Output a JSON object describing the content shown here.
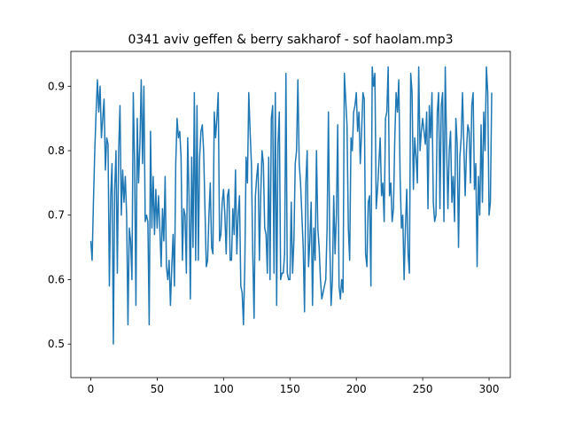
{
  "chart_data": {
    "type": "line",
    "title": "0341 aviv geffen & berry sakharof - sof haolam.mp3",
    "x": [
      0,
      1,
      2,
      3,
      4,
      5,
      6,
      7,
      8,
      9,
      10,
      11,
      12,
      13,
      14,
      15,
      16,
      17,
      18,
      19,
      20,
      21,
      22,
      23,
      24,
      25,
      26,
      27,
      28,
      29,
      30,
      31,
      32,
      33,
      34,
      35,
      36,
      37,
      38,
      39,
      40,
      41,
      42,
      43,
      44,
      45,
      46,
      47,
      48,
      49,
      50,
      51,
      52,
      53,
      54,
      55,
      56,
      57,
      58,
      59,
      60,
      61,
      62,
      63,
      64,
      65,
      66,
      67,
      68,
      69,
      70,
      71,
      72,
      73,
      74,
      75,
      76,
      77,
      78,
      79,
      80,
      81,
      82,
      83,
      84,
      85,
      86,
      87,
      88,
      89,
      90,
      91,
      92,
      93,
      94,
      95,
      96,
      97,
      98,
      99,
      100,
      101,
      102,
      103,
      104,
      105,
      106,
      107,
      108,
      109,
      110,
      111,
      112,
      113,
      114,
      115,
      116,
      117,
      118,
      119,
      120,
      121,
      122,
      123,
      124,
      125,
      126,
      127,
      128,
      129,
      130,
      131,
      132,
      133,
      134,
      135,
      136,
      137,
      138,
      139,
      140,
      141,
      142,
      143,
      144,
      145,
      146,
      147,
      148,
      149,
      150,
      151,
      152,
      153,
      154,
      155,
      156,
      157,
      158,
      159,
      160,
      161,
      162,
      163,
      164,
      165,
      166,
      167,
      168,
      169,
      170,
      171,
      172,
      173,
      174,
      175,
      176,
      177,
      178,
      179,
      180,
      181,
      182,
      183,
      184,
      185,
      186,
      187,
      188,
      189,
      190,
      191,
      192,
      193,
      194,
      195,
      196,
      197,
      198,
      199,
      200,
      201,
      202,
      203,
      204,
      205,
      206,
      207,
      208,
      209,
      210,
      211,
      212,
      213,
      214,
      215,
      216,
      217,
      218,
      219,
      220,
      221,
      222,
      223,
      224,
      225,
      226,
      227,
      228,
      229,
      230,
      231,
      232,
      233,
      234,
      235,
      236,
      237,
      238,
      239,
      240,
      241,
      242,
      243,
      244,
      245,
      246,
      247,
      248,
      249,
      250,
      251,
      252,
      253,
      254,
      255,
      256,
      257,
      258,
      259,
      260,
      261,
      262,
      263,
      264,
      265,
      266,
      267,
      268,
      269,
      270,
      271,
      272,
      273,
      274,
      275,
      276,
      277,
      278,
      279,
      280,
      281,
      282,
      283,
      284,
      285,
      286,
      287,
      288,
      289,
      290,
      291,
      292,
      293,
      294,
      295,
      296,
      297,
      298,
      299,
      300,
      301,
      302
    ],
    "series": [
      {
        "color": "#1f77b4",
        "values": [
          0.66,
          0.63,
          0.72,
          0.8,
          0.86,
          0.91,
          0.86,
          0.9,
          0.82,
          0.85,
          0.88,
          0.77,
          0.82,
          0.81,
          0.59,
          0.73,
          0.78,
          0.5,
          0.74,
          0.8,
          0.61,
          0.8,
          0.87,
          0.7,
          0.77,
          0.72,
          0.76,
          0.7,
          0.53,
          0.68,
          0.66,
          0.6,
          0.89,
          0.78,
          0.56,
          0.85,
          0.75,
          0.81,
          0.91,
          0.78,
          0.9,
          0.69,
          0.7,
          0.69,
          0.53,
          0.83,
          0.68,
          0.76,
          0.67,
          0.74,
          0.68,
          0.73,
          0.68,
          0.62,
          0.71,
          0.66,
          0.76,
          0.62,
          0.6,
          0.63,
          0.56,
          0.62,
          0.67,
          0.59,
          0.78,
          0.85,
          0.82,
          0.83,
          0.79,
          0.63,
          0.71,
          0.7,
          0.61,
          0.82,
          0.73,
          0.57,
          0.79,
          0.65,
          0.89,
          0.63,
          0.87,
          0.63,
          0.79,
          0.83,
          0.84,
          0.8,
          0.71,
          0.62,
          0.63,
          0.7,
          0.75,
          0.65,
          0.64,
          0.86,
          0.82,
          0.85,
          0.89,
          0.66,
          0.67,
          0.72,
          0.74,
          0.7,
          0.64,
          0.73,
          0.74,
          0.63,
          0.63,
          0.71,
          0.67,
          0.77,
          0.64,
          0.7,
          0.73,
          0.59,
          0.58,
          0.53,
          0.62,
          0.79,
          0.75,
          0.89,
          0.83,
          0.78,
          0.64,
          0.54,
          0.73,
          0.76,
          0.78,
          0.63,
          0.73,
          0.8,
          0.78,
          0.68,
          0.67,
          0.61,
          0.79,
          0.6,
          0.85,
          0.87,
          0.61,
          0.89,
          0.56,
          0.81,
          0.86,
          0.6,
          0.61,
          0.61,
          0.64,
          0.92,
          0.61,
          0.6,
          0.6,
          0.72,
          0.61,
          0.66,
          0.78,
          0.8,
          0.91,
          0.78,
          0.75,
          0.7,
          0.65,
          0.55,
          0.75,
          0.8,
          0.62,
          0.66,
          0.72,
          0.56,
          0.68,
          0.63,
          0.8,
          0.68,
          0.65,
          0.6,
          0.57,
          0.58,
          0.59,
          0.6,
          0.68,
          0.86,
          0.66,
          0.56,
          0.6,
          0.73,
          0.64,
          0.7,
          0.84,
          0.59,
          0.57,
          0.6,
          0.58,
          0.92,
          0.88,
          0.84,
          0.68,
          0.63,
          0.82,
          0.8,
          0.86,
          0.87,
          0.89,
          0.83,
          0.86,
          0.78,
          0.83,
          0.89,
          0.88,
          0.64,
          0.62,
          0.72,
          0.73,
          0.59,
          0.93,
          0.9,
          0.92,
          0.71,
          0.74,
          0.78,
          0.82,
          0.73,
          0.75,
          0.69,
          0.85,
          0.86,
          0.93,
          0.73,
          0.75,
          0.69,
          0.71,
          0.82,
          0.89,
          0.86,
          0.91,
          0.76,
          0.68,
          0.7,
          0.6,
          0.68,
          0.74,
          0.64,
          0.61,
          0.92,
          0.89,
          0.74,
          0.82,
          0.79,
          0.75,
          0.93,
          0.8,
          0.83,
          0.85,
          0.83,
          0.81,
          0.86,
          0.71,
          0.87,
          0.82,
          0.89,
          0.72,
          0.69,
          0.7,
          0.86,
          0.89,
          0.71,
          0.87,
          0.89,
          0.69,
          0.93,
          0.81,
          0.71,
          0.8,
          0.83,
          0.72,
          0.76,
          0.69,
          0.85,
          0.81,
          0.65,
          0.79,
          0.82,
          0.89,
          0.81,
          0.73,
          0.8,
          0.84,
          0.83,
          0.75,
          0.87,
          0.89,
          0.74,
          0.78,
          0.62,
          0.76,
          0.7,
          0.84,
          0.72,
          0.86,
          0.8,
          0.93,
          0.89,
          0.7,
          0.72,
          0.89
        ]
      }
    ],
    "xlim": [
      -15,
      316
    ],
    "ylim": [
      0.448,
      0.954
    ],
    "xticks": [
      0,
      50,
      100,
      150,
      200,
      250,
      300
    ],
    "yticks": [
      0.5,
      0.6,
      0.7,
      0.8,
      0.9
    ]
  }
}
